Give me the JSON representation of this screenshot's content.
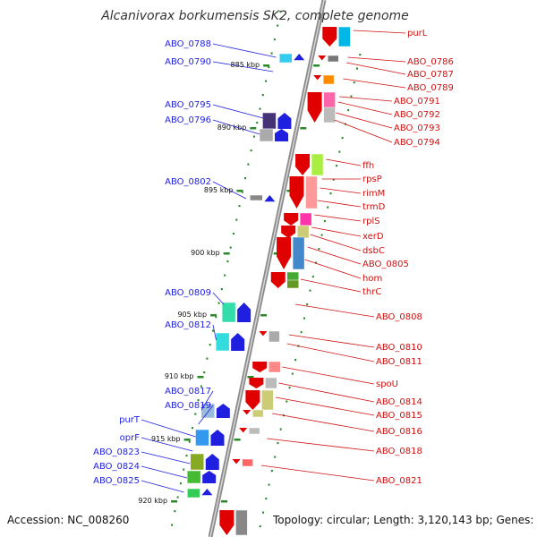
{
  "title": "Alcanivorax borkumensis SK2, complete genome",
  "accession": "Accession: NC_008260",
  "topology": "Topology: circular; Length: 3,120,143 bp; Genes: 2,806",
  "colors": {
    "forward": "#1f1fe0",
    "reverse": "#e00000",
    "backbone": "#999999",
    "ruler": "#2a8a2a"
  },
  "kbp_labels": [
    "885 kbp",
    "890 kbp",
    "895 kbp",
    "900 kbp",
    "905 kbp",
    "910 kbp",
    "915 kbp",
    "920 kbp"
  ],
  "left_genes": [
    "ABO_0788",
    "ABO_0790",
    "ABO_0795",
    "ABO_0796",
    "ABO_0802",
    "ABO_0809",
    "ABO_0812",
    "ABO_0817",
    "ABO_0819",
    "purT",
    "oprF",
    "ABO_0823",
    "ABO_0824",
    "ABO_0825"
  ],
  "right_genes": [
    "purL",
    "ABO_0786",
    "ABO_0787",
    "ABO_0789",
    "ABO_0791",
    "ABO_0792",
    "ABO_0793",
    "ABO_0794",
    "ffh",
    "rpsP",
    "rimM",
    "trmD",
    "rplS",
    "xerD",
    "dsbC",
    "ABO_0805",
    "hom",
    "thrC",
    "ABO_0808",
    "ABO_0810",
    "ABO_0811",
    "spoU",
    "ABO_0814",
    "ABO_0815",
    "ABO_0816",
    "ABO_0818",
    "ABO_0821"
  ]
}
